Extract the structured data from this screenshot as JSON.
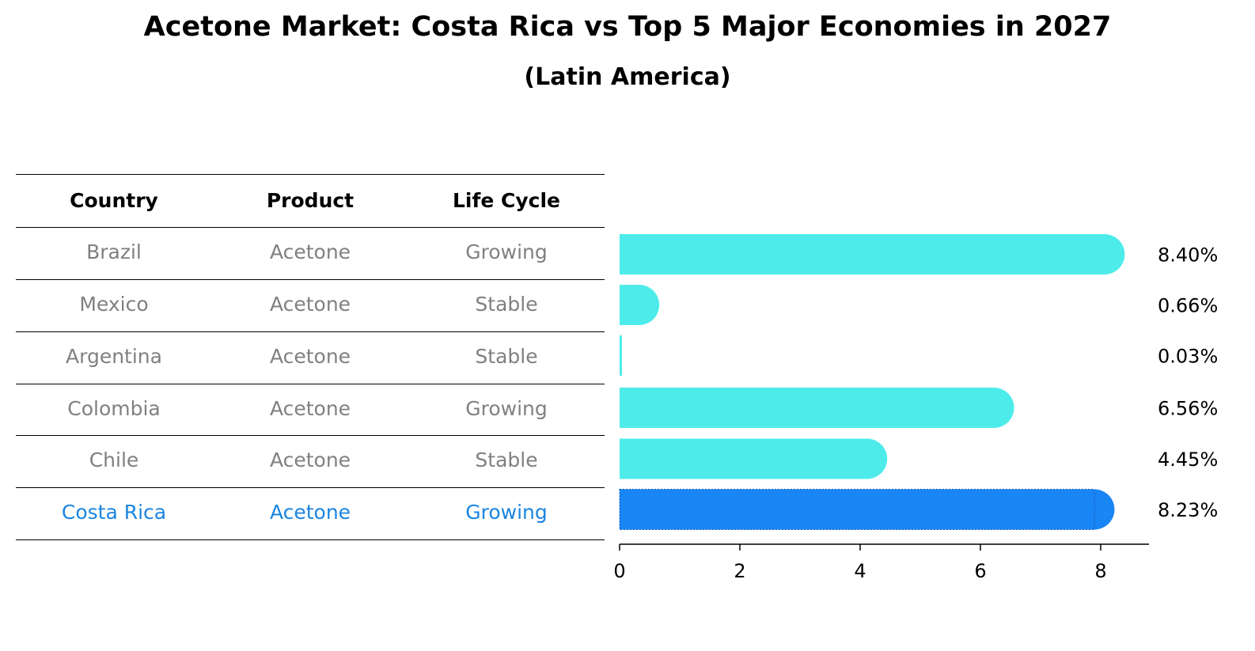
{
  "title": "Acetone Market: Costa Rica vs Top 5 Major Economies in 2027",
  "subtitle": "(Latin America)",
  "table": {
    "headers": [
      "Country",
      "Product",
      "Life Cycle"
    ],
    "rows": [
      [
        "Brazil",
        "Acetone",
        "Growing"
      ],
      [
        "Mexico",
        "Acetone",
        "Stable"
      ],
      [
        "Argentina",
        "Acetone",
        "Stable"
      ],
      [
        "Colombia",
        "Acetone",
        "Growing"
      ],
      [
        "Chile",
        "Acetone",
        "Stable"
      ],
      [
        "Costa Rica",
        "Acetone",
        "Growing"
      ]
    ],
    "highlight_row": "Costa Rica",
    "highlight_color": "#1a85e0",
    "text_color": "#808080"
  },
  "chart_data": {
    "type": "bar",
    "orientation": "horizontal",
    "title": "Acetone Market: Costa Rica vs Top 5 Major Economies in 2027",
    "subtitle": "(Latin America)",
    "categories": [
      "Brazil",
      "Mexico",
      "Argentina",
      "Colombia",
      "Chile",
      "Costa Rica"
    ],
    "values": [
      8.4,
      0.66,
      0.03,
      6.56,
      4.45,
      8.23
    ],
    "value_labels": [
      "8.40%",
      "0.66%",
      "0.03%",
      "6.56%",
      "4.45%",
      "8.23%"
    ],
    "xticks": [
      0,
      2,
      4,
      6,
      8
    ],
    "xlim": [
      0,
      8.8
    ],
    "bar_color": "#4deceb",
    "highlight_color": "#1a85f5",
    "highlight_category": "Costa Rica",
    "grid": false
  }
}
